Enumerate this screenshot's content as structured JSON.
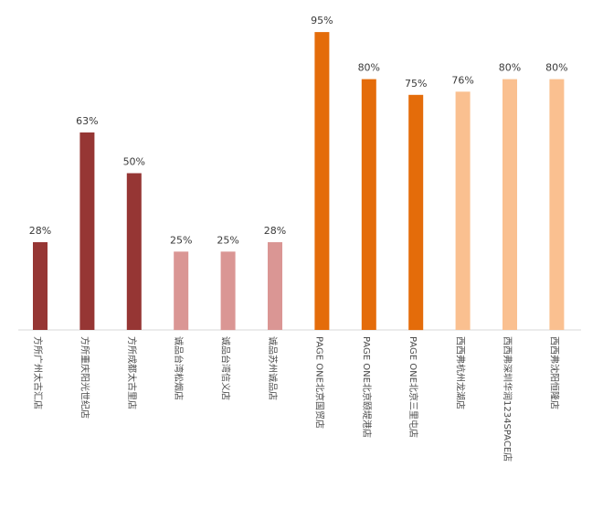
{
  "chart_data": {
    "type": "bar",
    "categories": [
      "方所广州太古汇店",
      "方所重庆阳光世纪店",
      "方所成都太古里店",
      "诚品台湾松烟店",
      "诚品台湾信义店",
      "诚品苏州诚品店",
      "PAGE ONE北京国贸店",
      "PAGE ONE北京颐堤港店",
      "PAGE ONE北京三里屯店",
      "西西弗杭州龙湖店",
      "西西弗深圳华润1234SPACE店",
      "西西弗沈阳恒隆店"
    ],
    "values": [
      28,
      63,
      50,
      25,
      25,
      28,
      95,
      80,
      75,
      76,
      80,
      80
    ],
    "value_labels": [
      "28%",
      "63%",
      "50%",
      "25%",
      "25%",
      "28%",
      "95%",
      "80%",
      "75%",
      "76%",
      "80%",
      "80%"
    ],
    "bar_colors": [
      "#963634",
      "#963634",
      "#963634",
      "#DA9694",
      "#DA9694",
      "#DA9694",
      "#E46C0A",
      "#E46C0A",
      "#E46C0A",
      "#FAC090",
      "#FAC090",
      "#FAC090"
    ],
    "unit": "%",
    "ylim": [
      0,
      100
    ],
    "grid": false,
    "legend": "none",
    "title": "",
    "xlabel": "",
    "ylabel": ""
  }
}
